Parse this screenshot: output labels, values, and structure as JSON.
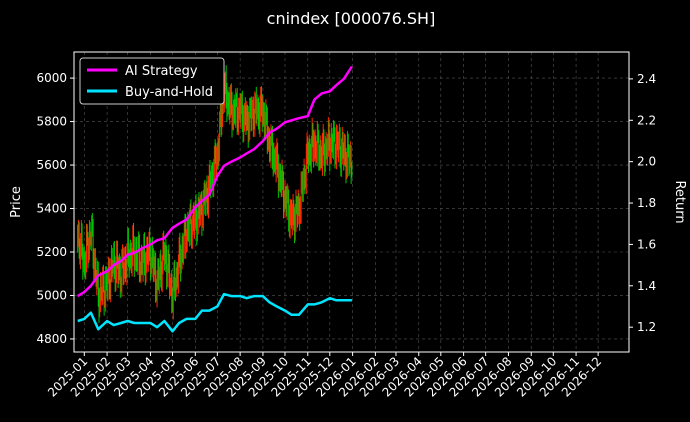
{
  "chart_data": {
    "type": "line",
    "title": "cnindex [000076.SH]",
    "ylabel_left": "Price",
    "ylabel_right": "Return",
    "ylim_left": [
      4740,
      6120
    ],
    "ylim_right": [
      1.08,
      2.53
    ],
    "left_ticks": [
      4800,
      5000,
      5200,
      5400,
      5600,
      5800,
      6000
    ],
    "right_ticks": [
      1.2,
      1.4,
      1.6,
      1.8,
      2.0,
      2.2,
      2.4
    ],
    "x_tick_labels": [
      "2025-01",
      "2025-02",
      "2025-03",
      "2025-04",
      "2025-05",
      "2025-06",
      "2025-07",
      "2025-08",
      "2025-09",
      "2025-10",
      "2025-11",
      "2025-12",
      "2026-01",
      "2026-02",
      "2026-03",
      "2026-04",
      "2026-05",
      "2026-06",
      "2026-07",
      "2026-08",
      "2026-09",
      "2026-10",
      "2026-11",
      "2026-12"
    ],
    "grid": true,
    "legend_position": "top-left",
    "colors": {
      "ai": "#ff00ff",
      "bh": "#00e5ff",
      "up": "#ff2a00",
      "down": "#00c800",
      "grid": "#555555"
    },
    "series": [
      {
        "name": "AI Strategy",
        "axis": "right",
        "x": [
          "2024-12-23",
          "2025-01-01",
          "2025-01-10",
          "2025-01-20",
          "2025-02-01",
          "2025-02-10",
          "2025-02-20",
          "2025-03-01",
          "2025-03-10",
          "2025-03-20",
          "2025-04-01",
          "2025-04-10",
          "2025-04-20",
          "2025-05-01",
          "2025-05-10",
          "2025-05-20",
          "2025-06-01",
          "2025-06-10",
          "2025-06-20",
          "2025-07-01",
          "2025-07-10",
          "2025-07-20",
          "2025-08-01",
          "2025-08-10",
          "2025-08-20",
          "2025-09-01",
          "2025-09-10",
          "2025-09-20",
          "2025-10-01",
          "2025-10-10",
          "2025-10-20",
          "2025-11-01",
          "2025-11-10",
          "2025-11-20",
          "2025-12-01",
          "2025-12-10",
          "2025-12-20",
          "2025-12-31"
        ],
        "values": [
          1.35,
          1.37,
          1.4,
          1.45,
          1.47,
          1.5,
          1.52,
          1.55,
          1.56,
          1.58,
          1.6,
          1.62,
          1.63,
          1.68,
          1.7,
          1.72,
          1.78,
          1.81,
          1.84,
          1.93,
          1.98,
          2.0,
          2.02,
          2.04,
          2.06,
          2.1,
          2.14,
          2.16,
          2.19,
          2.2,
          2.21,
          2.22,
          2.3,
          2.33,
          2.34,
          2.37,
          2.4,
          2.46
        ]
      },
      {
        "name": "Buy-and-Hold",
        "axis": "right",
        "x": [
          "2024-12-23",
          "2025-01-01",
          "2025-01-10",
          "2025-01-20",
          "2025-02-01",
          "2025-02-10",
          "2025-02-20",
          "2025-03-01",
          "2025-03-10",
          "2025-03-20",
          "2025-04-01",
          "2025-04-10",
          "2025-04-20",
          "2025-05-01",
          "2025-05-10",
          "2025-05-20",
          "2025-06-01",
          "2025-06-10",
          "2025-06-20",
          "2025-07-01",
          "2025-07-10",
          "2025-07-20",
          "2025-08-01",
          "2025-08-10",
          "2025-08-20",
          "2025-09-01",
          "2025-09-10",
          "2025-09-20",
          "2025-10-01",
          "2025-10-10",
          "2025-10-20",
          "2025-11-01",
          "2025-11-10",
          "2025-11-20",
          "2025-12-01",
          "2025-12-10",
          "2025-12-20",
          "2025-12-31"
        ],
        "values": [
          1.23,
          1.24,
          1.27,
          1.19,
          1.23,
          1.21,
          1.22,
          1.23,
          1.22,
          1.22,
          1.22,
          1.2,
          1.23,
          1.18,
          1.22,
          1.24,
          1.24,
          1.28,
          1.28,
          1.3,
          1.36,
          1.35,
          1.35,
          1.34,
          1.35,
          1.35,
          1.32,
          1.3,
          1.28,
          1.26,
          1.26,
          1.31,
          1.31,
          1.32,
          1.34,
          1.33,
          1.33,
          1.33
        ]
      }
    ],
    "price_series": {
      "name": "Price",
      "axis": "left",
      "x": [
        "2024-12-23",
        "2025-01-01",
        "2025-01-10",
        "2025-01-20",
        "2025-02-01",
        "2025-02-10",
        "2025-02-20",
        "2025-03-01",
        "2025-03-10",
        "2025-03-20",
        "2025-04-01",
        "2025-04-10",
        "2025-04-20",
        "2025-05-01",
        "2025-05-10",
        "2025-05-20",
        "2025-06-01",
        "2025-06-10",
        "2025-06-20",
        "2025-07-01",
        "2025-07-10",
        "2025-07-20",
        "2025-08-01",
        "2025-08-10",
        "2025-08-20",
        "2025-09-01",
        "2025-09-10",
        "2025-09-20",
        "2025-10-01",
        "2025-10-10",
        "2025-10-20",
        "2025-11-01",
        "2025-11-10",
        "2025-11-20",
        "2025-12-01",
        "2025-12-10",
        "2025-12-20",
        "2025-12-31"
      ],
      "values": [
        5280,
        5150,
        5300,
        5000,
        5050,
        5150,
        5100,
        5180,
        5200,
        5150,
        5200,
        5050,
        5200,
        5000,
        5150,
        5300,
        5350,
        5400,
        5500,
        5650,
        5950,
        5850,
        5850,
        5800,
        5850,
        5850,
        5700,
        5600,
        5450,
        5350,
        5400,
        5650,
        5700,
        5650,
        5700,
        5700,
        5650,
        5620
      ]
    }
  }
}
